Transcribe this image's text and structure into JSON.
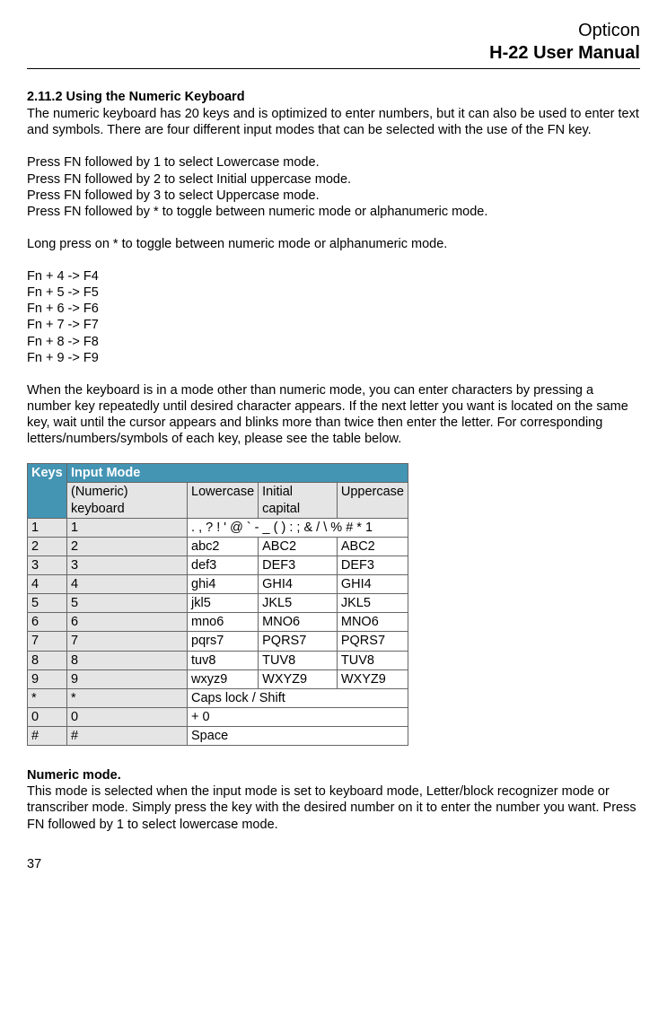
{
  "header": {
    "brand": "Opticon",
    "manual": "H-22 User Manual"
  },
  "section": {
    "title": "2.11.2 Using the Numeric Keyboard",
    "intro": "The numeric keyboard has 20 keys and is optimized to enter numbers, but it can also be used to enter text and symbols. There are four different input modes that can be selected with the use of the FN key.",
    "fn_instructions": [
      "Press FN followed by 1 to select Lowercase mode.",
      "Press FN followed by 2 to select Initial uppercase mode.",
      "Press FN followed by 3 to select Uppercase mode.",
      "Press FN followed by * to toggle between numeric mode or alphanumeric mode."
    ],
    "longpress": "Long press on * to toggle between numeric mode or alphanumeric mode.",
    "fn_map": [
      "Fn + 4 -> F4",
      "Fn + 5 -> F5",
      "Fn + 6 -> F6",
      "Fn + 7 -> F7",
      "Fn + 8 -> F8",
      "Fn + 9 -> F9"
    ],
    "press_repeat": "When the keyboard is in a mode other than numeric mode, you can enter characters by pressing a number key repeatedly until desired character appears. If the next letter you want is located on the same key, wait until the cursor appears and blinks more than twice then enter the letter. For corresponding letters/numbers/symbols of each key, please see the table below."
  },
  "table": {
    "head_keys": "Keys",
    "head_mode": "Input Mode",
    "sub": {
      "numeric": "(Numeric) keyboard",
      "lower": "Lowercase",
      "initial": "Initial capital",
      "upper": "Uppercase"
    },
    "rows": [
      {
        "key": "1",
        "numeric": "1",
        "span": ". , ? !   ' @ ` - _ ( ) : ; & / \\ % # * 1"
      },
      {
        "key": "2",
        "numeric": "2",
        "lower": "abc2",
        "initial": "ABC2",
        "upper": "ABC2"
      },
      {
        "key": "3",
        "numeric": "3",
        "lower": "def3",
        "initial": "DEF3",
        "upper": "DEF3"
      },
      {
        "key": "4",
        "numeric": "4",
        "lower": "ghi4",
        "initial": "GHI4",
        "upper": "GHI4"
      },
      {
        "key": "5",
        "numeric": "5",
        "lower": "jkl5",
        "initial": "JKL5",
        "upper": "JKL5"
      },
      {
        "key": "6",
        "numeric": "6",
        "lower": "mno6",
        "initial": "MNO6",
        "upper": "MNO6"
      },
      {
        "key": "7",
        "numeric": "7",
        "lower": "pqrs7",
        "initial": "PQRS7",
        "upper": "PQRS7"
      },
      {
        "key": "8",
        "numeric": "8",
        "lower": "tuv8",
        "initial": "TUV8",
        "upper": "TUV8"
      },
      {
        "key": "9",
        "numeric": "9",
        "lower": "wxyz9",
        "initial": "WXYZ9",
        "upper": "WXYZ9"
      },
      {
        "key": "*",
        "numeric": "*",
        "span": "Caps lock / Shift"
      },
      {
        "key": "0",
        "numeric": "0",
        "span": "+ 0"
      },
      {
        "key": "#",
        "numeric": "#",
        "span": "Space"
      }
    ]
  },
  "numeric_mode": {
    "title": "Numeric mode.",
    "body": "This mode is selected when the input mode is set to keyboard mode, Letter/block recognizer mode or transcriber mode. Simply press the key with the desired number on it to enter the number you want. Press FN followed by 1 to select lowercase mode."
  },
  "page": "37"
}
